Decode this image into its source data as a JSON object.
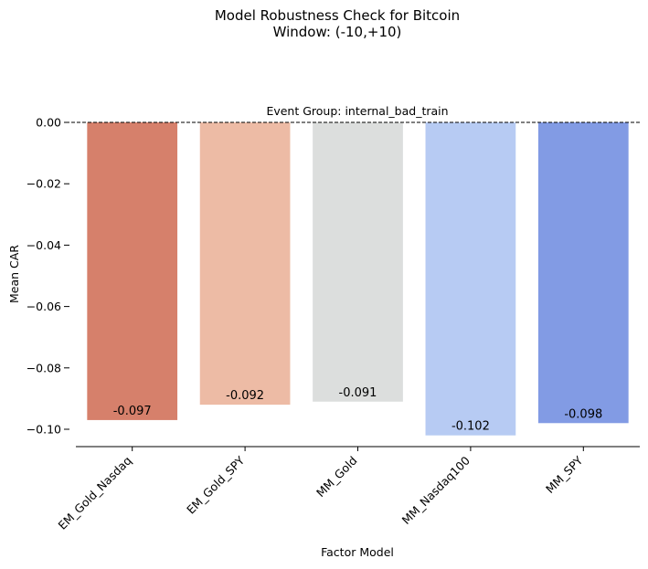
{
  "chart_data": {
    "type": "bar",
    "title": "Model Robustness Check for Bitcoin",
    "subtitle": "Window: (-10,+10)",
    "panel_title": "Event Group: internal_bad_train",
    "xlabel": "Factor Model",
    "ylabel": "Mean CAR",
    "categories": [
      "EM_Gold_Nasdaq",
      "EM_Gold_SPY",
      "MM_Gold",
      "MM_Nasdaq100",
      "MM_SPY"
    ],
    "values": [
      -0.097,
      -0.092,
      -0.091,
      -0.102,
      -0.098
    ],
    "value_labels": [
      "-0.097",
      "-0.092",
      "-0.091",
      "-0.102",
      "-0.098"
    ],
    "colors": [
      "#d6806b",
      "#edbba5",
      "#dcdedd",
      "#b7cbf3",
      "#829bE4"
    ],
    "ylim": [
      -0.107,
      0.0
    ],
    "yticks": [
      0.0,
      -0.02,
      -0.04,
      -0.06,
      -0.08,
      -0.1
    ],
    "ytick_labels": [
      "0.00",
      "−0.02",
      "−0.04",
      "−0.06",
      "−0.08",
      "−0.10"
    ],
    "reference_line": 0.0,
    "reference_line_style": "dashed",
    "grid": false,
    "legend": false
  }
}
